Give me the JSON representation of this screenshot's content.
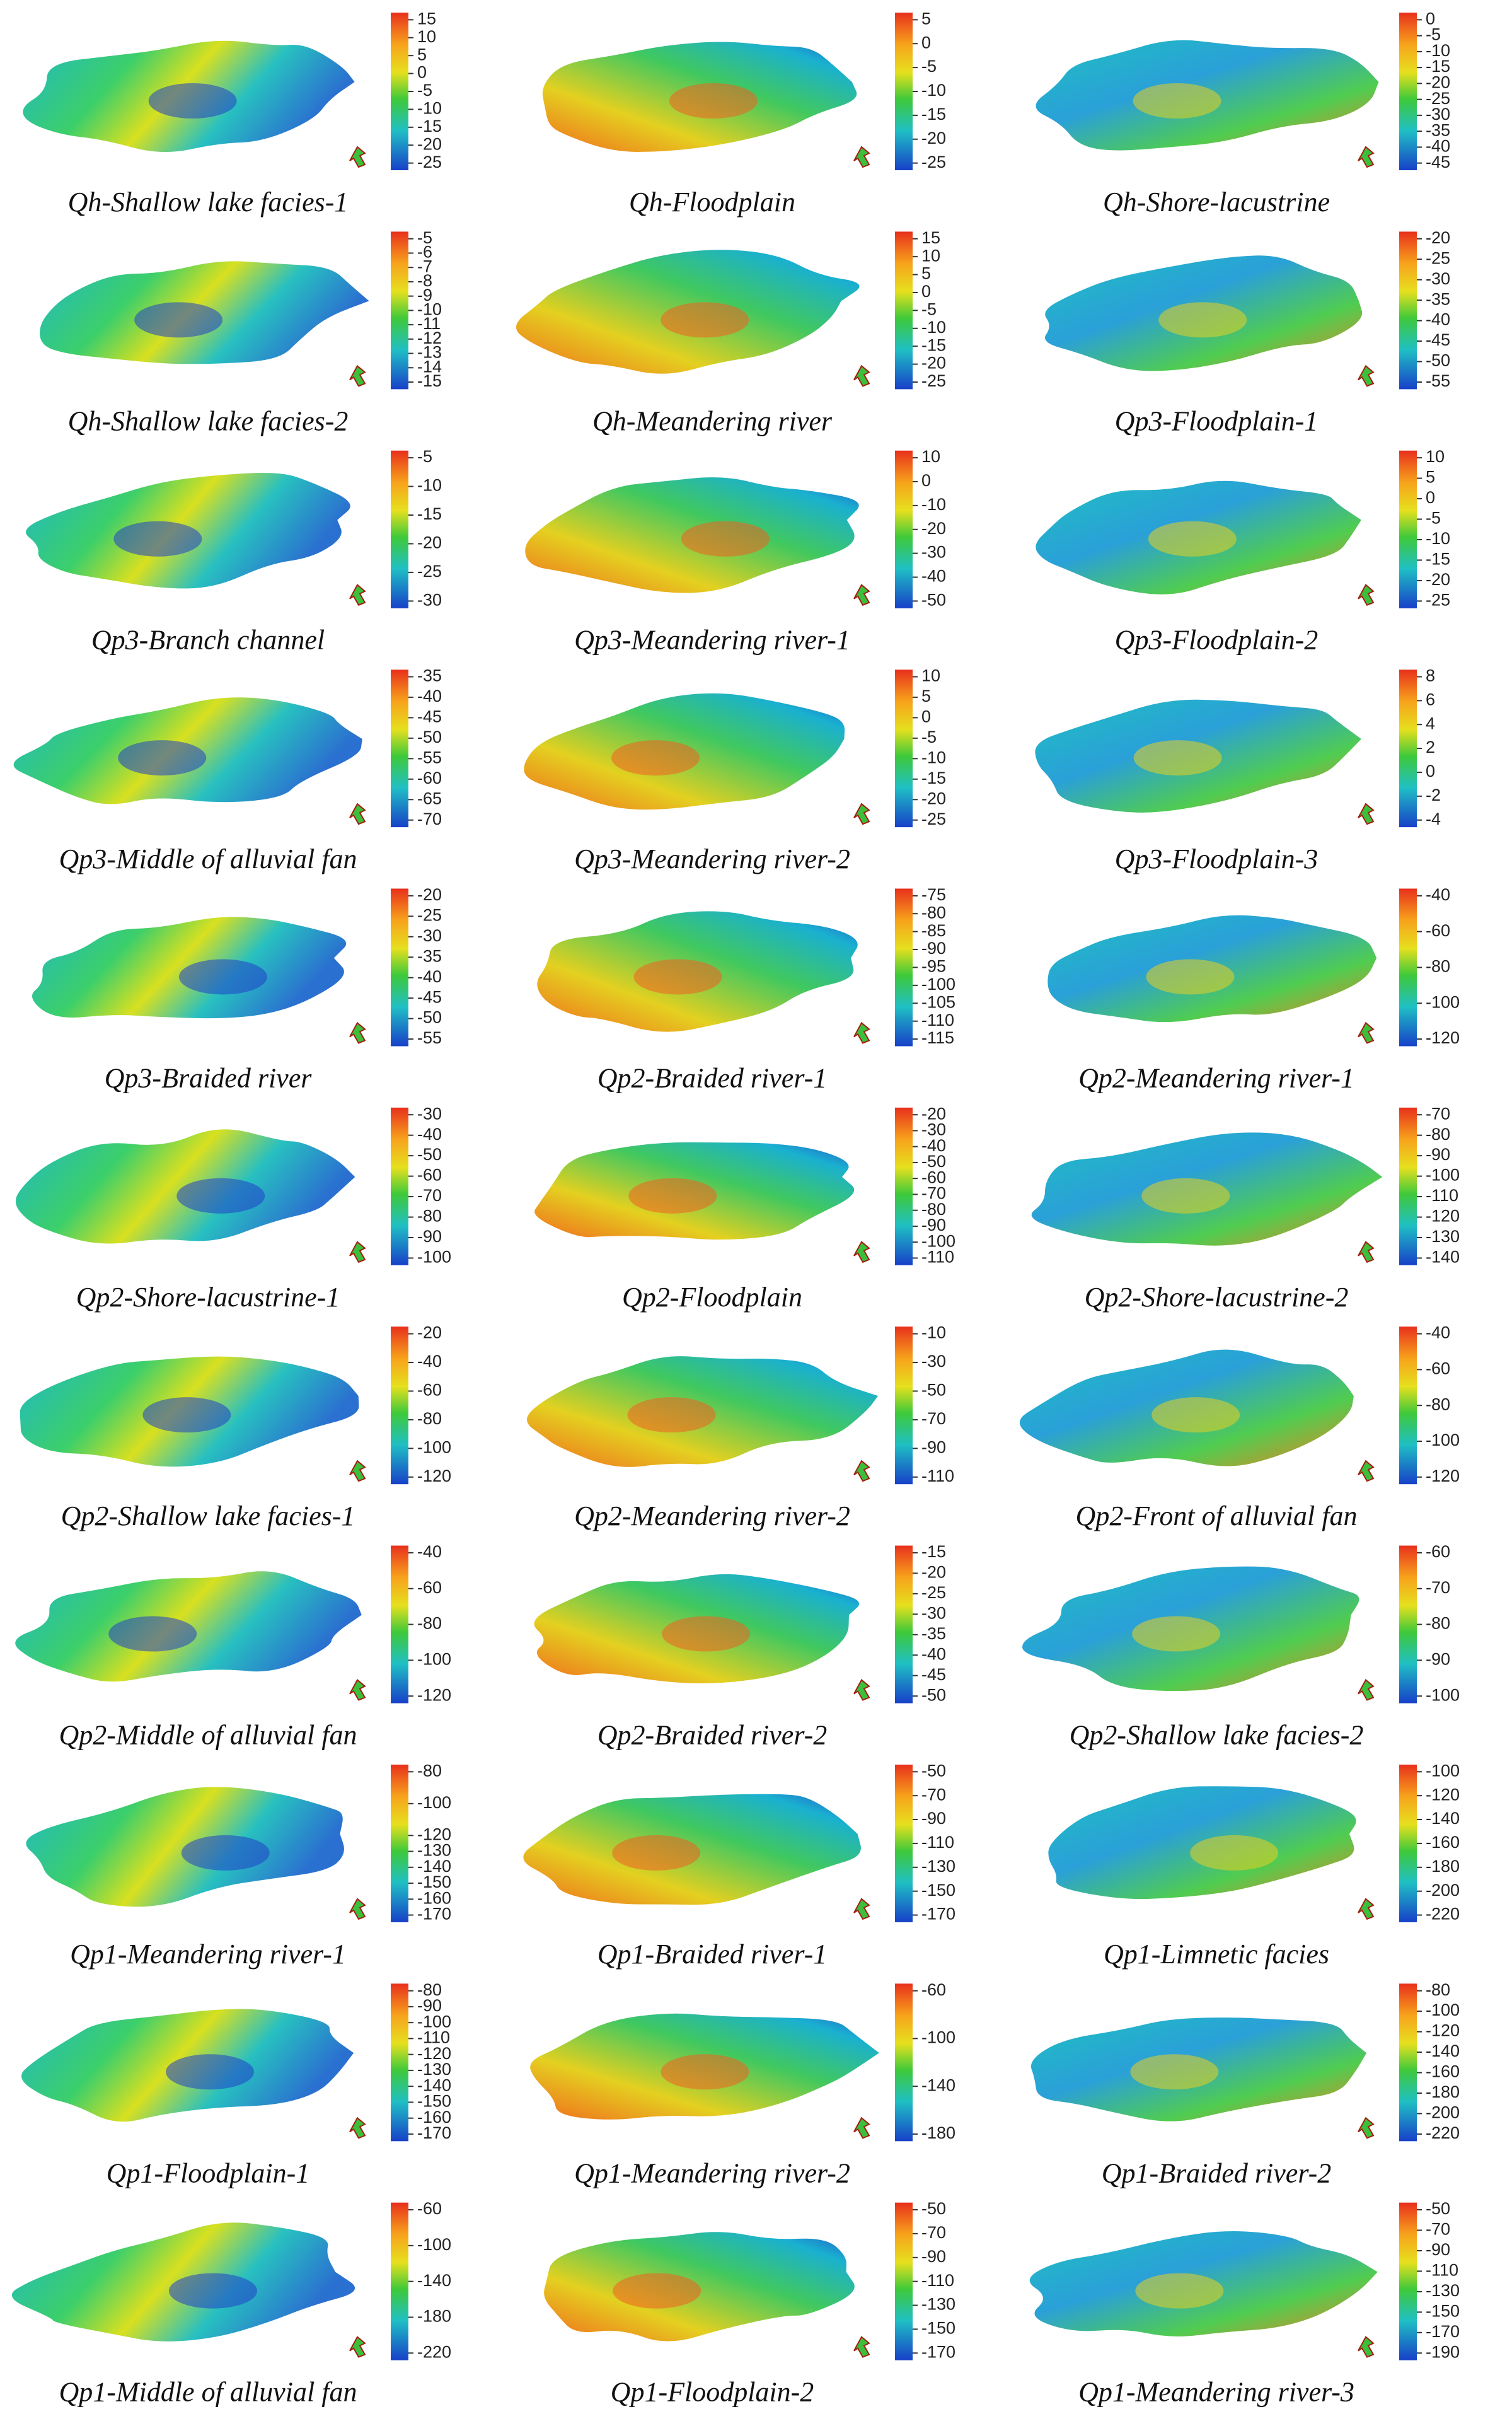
{
  "panels": [
    {
      "label": "Qh-Shallow lake facies-1",
      "ticks": [
        15,
        10,
        5,
        0,
        -5,
        -10,
        -15,
        -20,
        -25
      ]
    },
    {
      "label": "Qh-Floodplain",
      "ticks": [
        5,
        0,
        -5,
        -10,
        -15,
        -20,
        -25
      ]
    },
    {
      "label": "Qh-Shore-lacustrine",
      "ticks": [
        0,
        -5,
        -10,
        -15,
        -20,
        -25,
        -30,
        -35,
        -40,
        -45
      ]
    },
    {
      "label": "Qh-Shallow lake facies-2",
      "ticks": [
        -5,
        -6,
        -7,
        -8,
        -9,
        -10,
        -11,
        -12,
        -13,
        -14,
        -15
      ]
    },
    {
      "label": "Qh-Meandering river",
      "ticks": [
        15,
        10,
        5,
        0,
        -5,
        -10,
        -15,
        -20,
        -25
      ]
    },
    {
      "label": "Qp3-Floodplain-1",
      "ticks": [
        -20,
        -25,
        -30,
        -35,
        -40,
        -45,
        -50,
        -55
      ]
    },
    {
      "label": "Qp3-Branch channel",
      "ticks": [
        -5,
        -10,
        -15,
        -20,
        -25,
        -30
      ]
    },
    {
      "label": "Qp3-Meandering river-1",
      "ticks": [
        10,
        0,
        -10,
        -20,
        -30,
        -40,
        -50
      ]
    },
    {
      "label": "Qp3-Floodplain-2",
      "ticks": [
        10,
        5,
        0,
        -5,
        -10,
        -15,
        -20,
        -25
      ]
    },
    {
      "label": "Qp3-Middle of alluvial fan",
      "ticks": [
        -35,
        -40,
        -45,
        -50,
        -55,
        -60,
        -65,
        -70
      ]
    },
    {
      "label": "Qp3-Meandering river-2",
      "ticks": [
        10,
        5,
        0,
        -5,
        -10,
        -15,
        -20,
        -25
      ]
    },
    {
      "label": "Qp3-Floodplain-3",
      "ticks": [
        8,
        6,
        4,
        2,
        0,
        -2,
        -4
      ]
    },
    {
      "label": "Qp3-Braided river",
      "ticks": [
        -20,
        -25,
        -30,
        -35,
        -40,
        -45,
        -50,
        -55
      ]
    },
    {
      "label": "Qp2-Braided river-1",
      "ticks": [
        -75,
        -80,
        -85,
        -90,
        -95,
        -100,
        -105,
        -110,
        -115
      ]
    },
    {
      "label": "Qp2-Meandering river-1",
      "ticks": [
        -40,
        -60,
        -80,
        -100,
        -120
      ]
    },
    {
      "label": "Qp2-Shore-lacustrine-1",
      "ticks": [
        -30,
        -40,
        -50,
        -60,
        -70,
        -80,
        -90,
        -100
      ]
    },
    {
      "label": "Qp2-Floodplain",
      "ticks": [
        -20,
        -30,
        -40,
        -50,
        -60,
        -70,
        -80,
        -90,
        -100,
        -110
      ]
    },
    {
      "label": "Qp2-Shore-lacustrine-2",
      "ticks": [
        -70,
        -80,
        -90,
        -100,
        -110,
        -120,
        -130,
        -140
      ]
    },
    {
      "label": "Qp2-Shallow lake facies-1",
      "ticks": [
        -20,
        -40,
        -60,
        -80,
        -100,
        -120
      ]
    },
    {
      "label": "Qp2-Meandering river-2",
      "ticks": [
        -10,
        -30,
        -50,
        -70,
        -90,
        -110
      ]
    },
    {
      "label": "Qp2-Front of alluvial fan",
      "ticks": [
        -40,
        -60,
        -80,
        -100,
        -120
      ]
    },
    {
      "label": "Qp2-Middle of alluvial fan",
      "ticks": [
        -40,
        -60,
        -80,
        -100,
        -120
      ]
    },
    {
      "label": "Qp2-Braided river-2",
      "ticks": [
        -15,
        -20,
        -25,
        -30,
        -35,
        -40,
        -45,
        -50
      ]
    },
    {
      "label": "Qp2-Shallow lake facies-2",
      "ticks": [
        -60,
        -70,
        -80,
        -90,
        -100
      ]
    },
    {
      "label": "Qp1-Meandering river-1",
      "ticks": [
        -80,
        -100,
        -120,
        -130,
        -140,
        -150,
        -160,
        -170
      ]
    },
    {
      "label": "Qp1-Braided river-1",
      "ticks": [
        -50,
        -70,
        -90,
        -110,
        -130,
        -150,
        -170
      ]
    },
    {
      "label": "Qp1-Limnetic facies",
      "ticks": [
        -100,
        -120,
        -140,
        -160,
        -180,
        -200,
        -220
      ]
    },
    {
      "label": "Qp1-Floodplain-1",
      "ticks": [
        -80,
        -90,
        -100,
        -110,
        -120,
        -130,
        -140,
        -150,
        -160,
        -170
      ]
    },
    {
      "label": "Qp1-Meandering river-2",
      "ticks": [
        -60,
        -100,
        -140,
        -180
      ]
    },
    {
      "label": "Qp1-Braided river-2",
      "ticks": [
        -80,
        -100,
        -120,
        -140,
        -160,
        -180,
        -200,
        -220
      ]
    },
    {
      "label": "Qp1-Middle of alluvial fan",
      "ticks": [
        -60,
        -100,
        -140,
        -180,
        -220
      ]
    },
    {
      "label": "Qp1-Floodplain-2",
      "ticks": [
        -50,
        -70,
        -90,
        -110,
        -130,
        -150,
        -170
      ]
    },
    {
      "label": "Qp1-Meandering river-3",
      "ticks": [
        -50,
        -70,
        -90,
        -110,
        -130,
        -150,
        -170,
        -190
      ]
    }
  ]
}
